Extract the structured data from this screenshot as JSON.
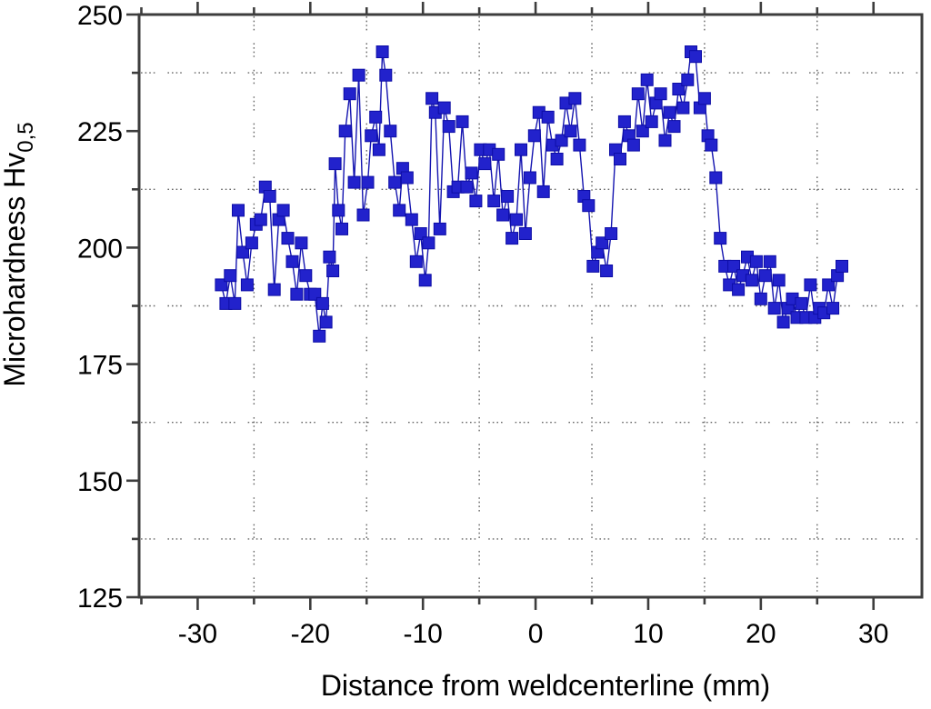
{
  "figure_title": "",
  "chart_data": {
    "type": "scatter",
    "title": "",
    "xlabel": "Distance from weldcenterline (mm)",
    "ylabel_main": "Microhardness Hv",
    "ylabel_sub": "0,5",
    "ylabel_full": "Microhardness Hv0,5",
    "xlim": [
      -35.2,
      34.3
    ],
    "ylim": [
      125,
      250
    ],
    "x_major_ticks": [
      -30,
      -20,
      -10,
      0,
      10,
      20,
      30
    ],
    "x_major_tick_labels": [
      "-30",
      "-20",
      "-10",
      "0",
      "10",
      "20",
      "30"
    ],
    "x_minor_ticks": [
      -35,
      -25,
      -15,
      -5,
      5,
      15,
      25
    ],
    "y_major_ticks": [
      125,
      150,
      175,
      200,
      225,
      250
    ],
    "y_major_tick_labels": [
      "125",
      "150",
      "175",
      "200",
      "225",
      "250"
    ],
    "y_minor_ticks": [
      137.5,
      162.5,
      187.5,
      212.5,
      237.5
    ],
    "grid_vertical_at": [
      -25,
      -15,
      -5,
      5,
      15,
      25
    ],
    "grid_horizontal_at": [
      137.5,
      162.5,
      187.5,
      212.5,
      237.5
    ],
    "grid_style": "dotted",
    "legend": "none",
    "marker": "filled-square",
    "colors": {
      "marker_fill": "#2222cc",
      "marker_edge": "#0d0da6",
      "line": "#1515b0",
      "frame": "#3d3d3d",
      "grid": "#666666",
      "text": "#000000",
      "background": "#ffffff"
    },
    "points": [
      [
        -27.9,
        192
      ],
      [
        -27.5,
        188
      ],
      [
        -27.1,
        194
      ],
      [
        -26.7,
        188
      ],
      [
        -26.4,
        208
      ],
      [
        -26.0,
        199
      ],
      [
        -25.6,
        192
      ],
      [
        -25.2,
        201
      ],
      [
        -24.8,
        205
      ],
      [
        -24.4,
        206
      ],
      [
        -24.0,
        213
      ],
      [
        -23.6,
        211
      ],
      [
        -23.2,
        191
      ],
      [
        -22.8,
        206
      ],
      [
        -22.4,
        208
      ],
      [
        -22.0,
        202
      ],
      [
        -21.6,
        197
      ],
      [
        -21.2,
        190
      ],
      [
        -20.8,
        201
      ],
      [
        -20.4,
        194
      ],
      [
        -20.0,
        190
      ],
      [
        -19.6,
        190
      ],
      [
        -19.2,
        181
      ],
      [
        -18.9,
        188
      ],
      [
        -18.6,
        184
      ],
      [
        -18.3,
        198
      ],
      [
        -18.0,
        195
      ],
      [
        -17.8,
        218
      ],
      [
        -17.5,
        208
      ],
      [
        -17.2,
        204
      ],
      [
        -16.9,
        225
      ],
      [
        -16.5,
        233
      ],
      [
        -16.1,
        214
      ],
      [
        -15.7,
        237
      ],
      [
        -15.3,
        207
      ],
      [
        -14.9,
        214
      ],
      [
        -14.6,
        224
      ],
      [
        -14.2,
        228
      ],
      [
        -13.9,
        221
      ],
      [
        -13.6,
        242
      ],
      [
        -13.3,
        237
      ],
      [
        -12.9,
        225
      ],
      [
        -12.5,
        214
      ],
      [
        -12.1,
        208
      ],
      [
        -11.8,
        217
      ],
      [
        -11.4,
        215
      ],
      [
        -11.0,
        206
      ],
      [
        -10.6,
        197
      ],
      [
        -10.2,
        203
      ],
      [
        -9.8,
        193
      ],
      [
        -9.5,
        201
      ],
      [
        -9.2,
        232
      ],
      [
        -8.9,
        229
      ],
      [
        -8.5,
        204
      ],
      [
        -8.1,
        230
      ],
      [
        -7.7,
        226
      ],
      [
        -7.3,
        212
      ],
      [
        -6.9,
        213
      ],
      [
        -6.5,
        227
      ],
      [
        -6.1,
        213
      ],
      [
        -5.7,
        216
      ],
      [
        -5.3,
        210
      ],
      [
        -4.9,
        221
      ],
      [
        -4.5,
        218
      ],
      [
        -4.1,
        221
      ],
      [
        -3.7,
        210
      ],
      [
        -3.3,
        220
      ],
      [
        -2.9,
        207
      ],
      [
        -2.5,
        211
      ],
      [
        -2.1,
        202
      ],
      [
        -1.7,
        206
      ],
      [
        -1.3,
        221
      ],
      [
        -0.9,
        203
      ],
      [
        -0.5,
        215
      ],
      [
        -0.1,
        224
      ],
      [
        0.3,
        229
      ],
      [
        0.7,
        212
      ],
      [
        1.1,
        228
      ],
      [
        1.5,
        222
      ],
      [
        1.9,
        219
      ],
      [
        2.3,
        223
      ],
      [
        2.7,
        231
      ],
      [
        3.1,
        225
      ],
      [
        3.5,
        232
      ],
      [
        3.9,
        222
      ],
      [
        4.3,
        211
      ],
      [
        4.7,
        209
      ],
      [
        5.1,
        196
      ],
      [
        5.5,
        199
      ],
      [
        5.9,
        201
      ],
      [
        6.3,
        195
      ],
      [
        6.7,
        203
      ],
      [
        7.1,
        221
      ],
      [
        7.5,
        219
      ],
      [
        7.9,
        227
      ],
      [
        8.3,
        224
      ],
      [
        8.7,
        222
      ],
      [
        9.1,
        233
      ],
      [
        9.5,
        225
      ],
      [
        9.9,
        236
      ],
      [
        10.3,
        227
      ],
      [
        10.7,
        231
      ],
      [
        11.1,
        233
      ],
      [
        11.5,
        223
      ],
      [
        11.9,
        229
      ],
      [
        12.3,
        226
      ],
      [
        12.7,
        234
      ],
      [
        13.1,
        230
      ],
      [
        13.5,
        236
      ],
      [
        13.8,
        242
      ],
      [
        14.2,
        241
      ],
      [
        14.6,
        230
      ],
      [
        15.0,
        232
      ],
      [
        15.3,
        224
      ],
      [
        15.6,
        222
      ],
      [
        16.0,
        215
      ],
      [
        16.4,
        202
      ],
      [
        16.8,
        196
      ],
      [
        17.2,
        192
      ],
      [
        17.6,
        196
      ],
      [
        18.0,
        191
      ],
      [
        18.4,
        194
      ],
      [
        18.8,
        198
      ],
      [
        19.2,
        193
      ],
      [
        19.6,
        197
      ],
      [
        20.0,
        189
      ],
      [
        20.4,
        194
      ],
      [
        20.8,
        197
      ],
      [
        21.2,
        187
      ],
      [
        21.6,
        193
      ],
      [
        22.0,
        184
      ],
      [
        22.4,
        187
      ],
      [
        22.8,
        189
      ],
      [
        23.2,
        185
      ],
      [
        23.6,
        188
      ],
      [
        24.0,
        185
      ],
      [
        24.4,
        192
      ],
      [
        24.8,
        185
      ],
      [
        25.2,
        187
      ],
      [
        25.6,
        186
      ],
      [
        26.0,
        192
      ],
      [
        26.4,
        187
      ],
      [
        26.8,
        194
      ],
      [
        27.2,
        196
      ]
    ]
  }
}
